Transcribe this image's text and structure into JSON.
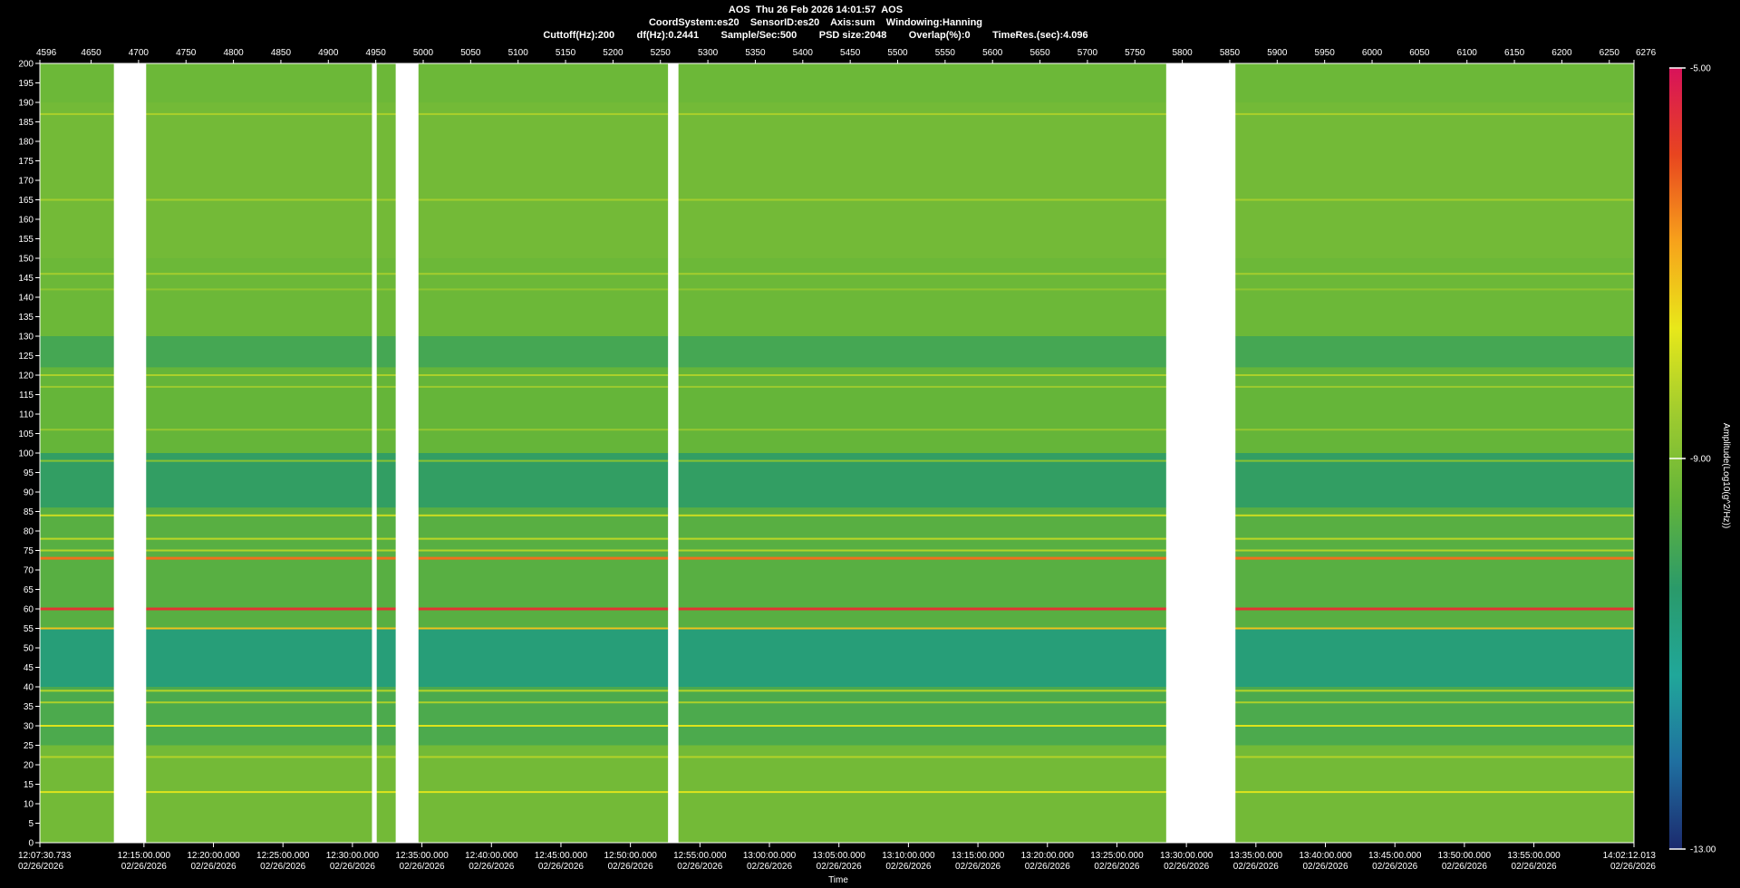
{
  "header": {
    "title": "AOS  Thu 26 Feb 2026 14:01:57  AOS",
    "params_line1": "CoordSystem:es20    SensorID:es20    Axis:sum    Windowing:Hanning",
    "params_line2": "Cuttoff(Hz):200        df(Hz):0.2441        Sample/Sec:500        PSD size:2048        Overlap(%):0        TimeRes.(sec):4.096"
  },
  "chart_data": {
    "type": "heatmap",
    "xlabel": "Time",
    "ylabel": "",
    "colorbar_label": "Amplitude(Log10(g^2/Hz))",
    "colorbar_ticks": [
      "-5.00",
      "-9.00",
      "-13.00"
    ],
    "colorbar_range": [
      -13,
      -5
    ],
    "ylim": [
      0,
      200
    ],
    "y_ticks": [
      0,
      5,
      10,
      15,
      20,
      25,
      30,
      35,
      40,
      45,
      50,
      55,
      60,
      65,
      70,
      75,
      80,
      85,
      90,
      95,
      100,
      105,
      110,
      115,
      120,
      125,
      130,
      135,
      140,
      145,
      150,
      155,
      160,
      165,
      170,
      175,
      180,
      185,
      190,
      195,
      200
    ],
    "top_axis_range": [
      4596,
      6276
    ],
    "top_ticks": [
      "4596",
      "4650",
      "4700",
      "4750",
      "4800",
      "4850",
      "4900",
      "4950",
      "5000",
      "5050",
      "5100",
      "5150",
      "5200",
      "5250",
      "5300",
      "5350",
      "5400",
      "5450",
      "5500",
      "5550",
      "5600",
      "5650",
      "5700",
      "5750",
      "5800",
      "5850",
      "5900",
      "5950",
      "6000",
      "6050",
      "6100",
      "6150",
      "6200",
      "6250",
      "6276"
    ],
    "time_ticks": [
      {
        "time": "12:07:30.733",
        "date": "02/26/2026"
      },
      {
        "time": "12:15:00.000",
        "date": "02/26/2026"
      },
      {
        "time": "12:20:00.000",
        "date": "02/26/2026"
      },
      {
        "time": "12:25:00.000",
        "date": "02/26/2026"
      },
      {
        "time": "12:30:00.000",
        "date": "02/26/2026"
      },
      {
        "time": "12:35:00.000",
        "date": "02/26/2026"
      },
      {
        "time": "12:40:00.000",
        "date": "02/26/2026"
      },
      {
        "time": "12:45:00.000",
        "date": "02/26/2026"
      },
      {
        "time": "12:50:00.000",
        "date": "02/26/2026"
      },
      {
        "time": "12:55:00.000",
        "date": "02/26/2026"
      },
      {
        "time": "13:00:00.000",
        "date": "02/26/2026"
      },
      {
        "time": "13:05:00.000",
        "date": "02/26/2026"
      },
      {
        "time": "13:10:00.000",
        "date": "02/26/2026"
      },
      {
        "time": "13:15:00.000",
        "date": "02/26/2026"
      },
      {
        "time": "13:20:00.000",
        "date": "02/26/2026"
      },
      {
        "time": "13:25:00.000",
        "date": "02/26/2026"
      },
      {
        "time": "13:30:00.000",
        "date": "02/26/2026"
      },
      {
        "time": "13:35:00.000",
        "date": "02/26/2026"
      },
      {
        "time": "13:40:00.000",
        "date": "02/26/2026"
      },
      {
        "time": "13:45:00.000",
        "date": "02/26/2026"
      },
      {
        "time": "13:50:00.000",
        "date": "02/26/2026"
      },
      {
        "time": "13:55:00.000",
        "date": "02/26/2026"
      },
      {
        "time": "14:02:12.013",
        "date": "02/26/2026"
      }
    ],
    "data_gaps": [
      [
        4674,
        4708
      ],
      [
        4946,
        4951
      ],
      [
        4971,
        4995
      ],
      [
        5258,
        5269
      ],
      [
        5783,
        5856
      ]
    ],
    "tonal_lines": [
      {
        "freq_hz": 60,
        "amplitude": -5.6
      },
      {
        "freq_hz": 73,
        "amplitude": -6.3
      },
      {
        "freq_hz": 55,
        "amplitude": -7.2
      },
      {
        "freq_hz": 30,
        "amplitude": -7.8
      },
      {
        "freq_hz": 84,
        "amplitude": -8.0
      },
      {
        "freq_hz": 78,
        "amplitude": -8.2
      },
      {
        "freq_hz": 75,
        "amplitude": -8.3
      },
      {
        "freq_hz": 39,
        "amplitude": -8.3
      },
      {
        "freq_hz": 36,
        "amplitude": -8.4
      },
      {
        "freq_hz": 120,
        "amplitude": -8.4
      },
      {
        "freq_hz": 187,
        "amplitude": -8.4
      },
      {
        "freq_hz": 165,
        "amplitude": -8.5
      },
      {
        "freq_hz": 146,
        "amplitude": -8.5
      },
      {
        "freq_hz": 117,
        "amplitude": -8.6
      },
      {
        "freq_hz": 106,
        "amplitude": -8.7
      },
      {
        "freq_hz": 142,
        "amplitude": -8.8
      },
      {
        "freq_hz": 98,
        "amplitude": -8.9
      },
      {
        "freq_hz": 13,
        "amplitude": -7.8
      },
      {
        "freq_hz": 22,
        "amplitude": -8.3
      }
    ],
    "background_levels": [
      {
        "freq_range": [
          190,
          200
        ],
        "amplitude": -9.3
      },
      {
        "freq_range": [
          170,
          190
        ],
        "amplitude": -9.2
      },
      {
        "freq_range": [
          150,
          170
        ],
        "amplitude": -9.2
      },
      {
        "freq_range": [
          130,
          150
        ],
        "amplitude": -9.3
      },
      {
        "freq_range": [
          122,
          130
        ],
        "amplitude": -9.9
      },
      {
        "freq_range": [
          100,
          122
        ],
        "amplitude": -9.4
      },
      {
        "freq_range": [
          86,
          100
        ],
        "amplitude": -10.2
      },
      {
        "freq_range": [
          62,
          86
        ],
        "amplitude": -9.6
      },
      {
        "freq_range": [
          40,
          55
        ],
        "amplitude": -10.6
      },
      {
        "freq_range": [
          25,
          40
        ],
        "amplitude": -9.8
      },
      {
        "freq_range": [
          0,
          25
        ],
        "amplitude": -9.2
      }
    ],
    "colors": {
      "background": "#000000",
      "gap": "#ffffff",
      "colormap": [
        "#1c2a6e",
        "#1f6fa0",
        "#20a79a",
        "#2a9a6a",
        "#62b43a",
        "#9ecb2f",
        "#e8e81a",
        "#f7a21b",
        "#e8451f",
        "#d8125a"
      ]
    }
  }
}
